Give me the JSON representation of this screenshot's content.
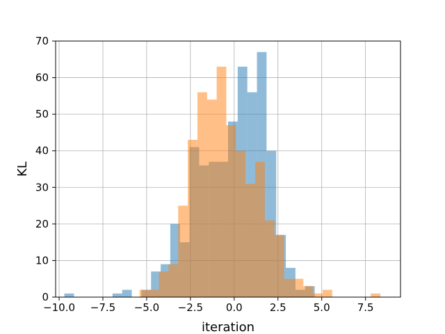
{
  "chart_data": {
    "type": "bar",
    "xlabel": "iteration",
    "ylabel": "KL",
    "xlim": [
      -10.2,
      9.5
    ],
    "ylim": [
      0,
      70
    ],
    "grid": true,
    "xticks": [
      -10.0,
      -7.5,
      -5.0,
      -2.5,
      0.0,
      2.5,
      5.0,
      7.5
    ],
    "xtick_labels": [
      "−10.0",
      "−7.5",
      "−5.0",
      "−2.5",
      "0.0",
      "2.5",
      "5.0",
      "7.5"
    ],
    "yticks": [
      0,
      10,
      20,
      30,
      40,
      50,
      60,
      70
    ],
    "ytick_labels": [
      "0",
      "10",
      "20",
      "30",
      "40",
      "50",
      "60",
      "70"
    ],
    "series": [
      {
        "color": "#1f77b4",
        "opacity": 0.5,
        "bin_edges": [
          -9.7,
          -9.15,
          -8.6,
          -8.05,
          -7.5,
          -6.95,
          -6.4,
          -5.85,
          -5.3,
          -4.75,
          -4.2,
          -3.65,
          -3.1,
          -2.55,
          -2.0,
          -1.45,
          -0.9,
          -0.35,
          0.2,
          0.75,
          1.3,
          1.85,
          2.4,
          2.95,
          3.5,
          4.05,
          4.6,
          5.15
        ],
        "counts": [
          1,
          0,
          0,
          0,
          0,
          1,
          2,
          0,
          2,
          7,
          9,
          20,
          15,
          41,
          36,
          37,
          37,
          48,
          63,
          56,
          67,
          40,
          17,
          8,
          2,
          3,
          0
        ]
      },
      {
        "color": "#ff7f0e",
        "opacity": 0.5,
        "bin_edges": [
          -5.4,
          -4.85,
          -4.3,
          -3.75,
          -3.2,
          -2.65,
          -2.1,
          -1.55,
          -1.0,
          -0.45,
          0.1,
          0.65,
          1.2,
          1.75,
          2.3,
          2.85,
          3.4,
          3.95,
          4.5,
          5.05,
          5.6,
          6.15,
          6.7,
          7.25,
          7.8,
          8.35
        ],
        "counts": [
          2,
          2,
          7,
          9,
          25,
          43,
          56,
          54,
          63,
          47,
          40,
          31,
          37,
          21,
          17,
          5,
          5,
          3,
          1,
          2,
          0,
          0,
          0,
          0,
          1
        ]
      }
    ]
  }
}
